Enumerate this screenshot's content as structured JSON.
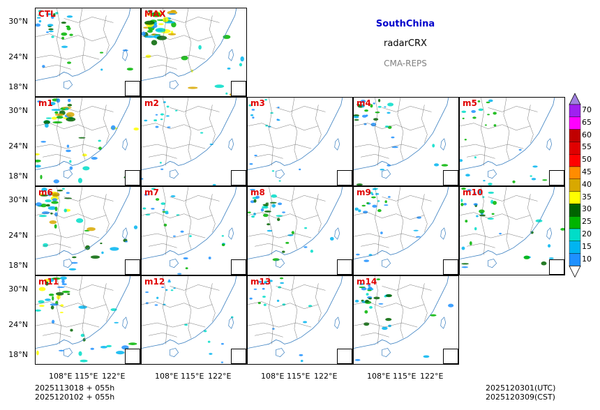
{
  "header": {
    "region": "SouthChina",
    "variable": "radarCRX",
    "system": "CMA-REPS"
  },
  "panels": [
    {
      "label": "CTL",
      "intensity": 0.5
    },
    {
      "label": "MAX",
      "intensity": 1.0
    },
    {
      "label": "m1",
      "intensity": 0.9
    },
    {
      "label": "m2",
      "intensity": 0.2
    },
    {
      "label": "m3",
      "intensity": 0.15
    },
    {
      "label": "m4",
      "intensity": 0.55
    },
    {
      "label": "m5",
      "intensity": 0.35
    },
    {
      "label": "m6",
      "intensity": 0.85
    },
    {
      "label": "m7",
      "intensity": 0.35
    },
    {
      "label": "m8",
      "intensity": 0.6
    },
    {
      "label": "m9",
      "intensity": 0.4
    },
    {
      "label": "m10",
      "intensity": 0.65
    },
    {
      "label": "m11",
      "intensity": 0.8
    },
    {
      "label": "m12",
      "intensity": 0.2
    },
    {
      "label": "m13",
      "intensity": 0.25
    },
    {
      "label": "m14",
      "intensity": 0.55
    }
  ],
  "axes": {
    "lat_ticks": [
      "30°N",
      "24°N",
      "18°N"
    ],
    "lon_ticks": [
      "108°E",
      "115°E",
      "122°E"
    ]
  },
  "colorbar": {
    "levels": [
      "70",
      "65",
      "60",
      "55",
      "50",
      "45",
      "40",
      "35",
      "30",
      "25",
      "20",
      "15",
      "10"
    ],
    "colors": [
      "#a020f0",
      "#ff00ff",
      "#c00000",
      "#e00000",
      "#ff0000",
      "#ff8c00",
      "#d8a800",
      "#ffff00",
      "#006400",
      "#00b400",
      "#00ddc8",
      "#00b4f0",
      "#1e90ff"
    ]
  },
  "footer": {
    "init_line1": "2025113018  +  055h",
    "init_line2": "2025120102  +  055h",
    "valid_utc": "2025120301(UTC)",
    "valid_cst": "2025120309(CST)"
  }
}
